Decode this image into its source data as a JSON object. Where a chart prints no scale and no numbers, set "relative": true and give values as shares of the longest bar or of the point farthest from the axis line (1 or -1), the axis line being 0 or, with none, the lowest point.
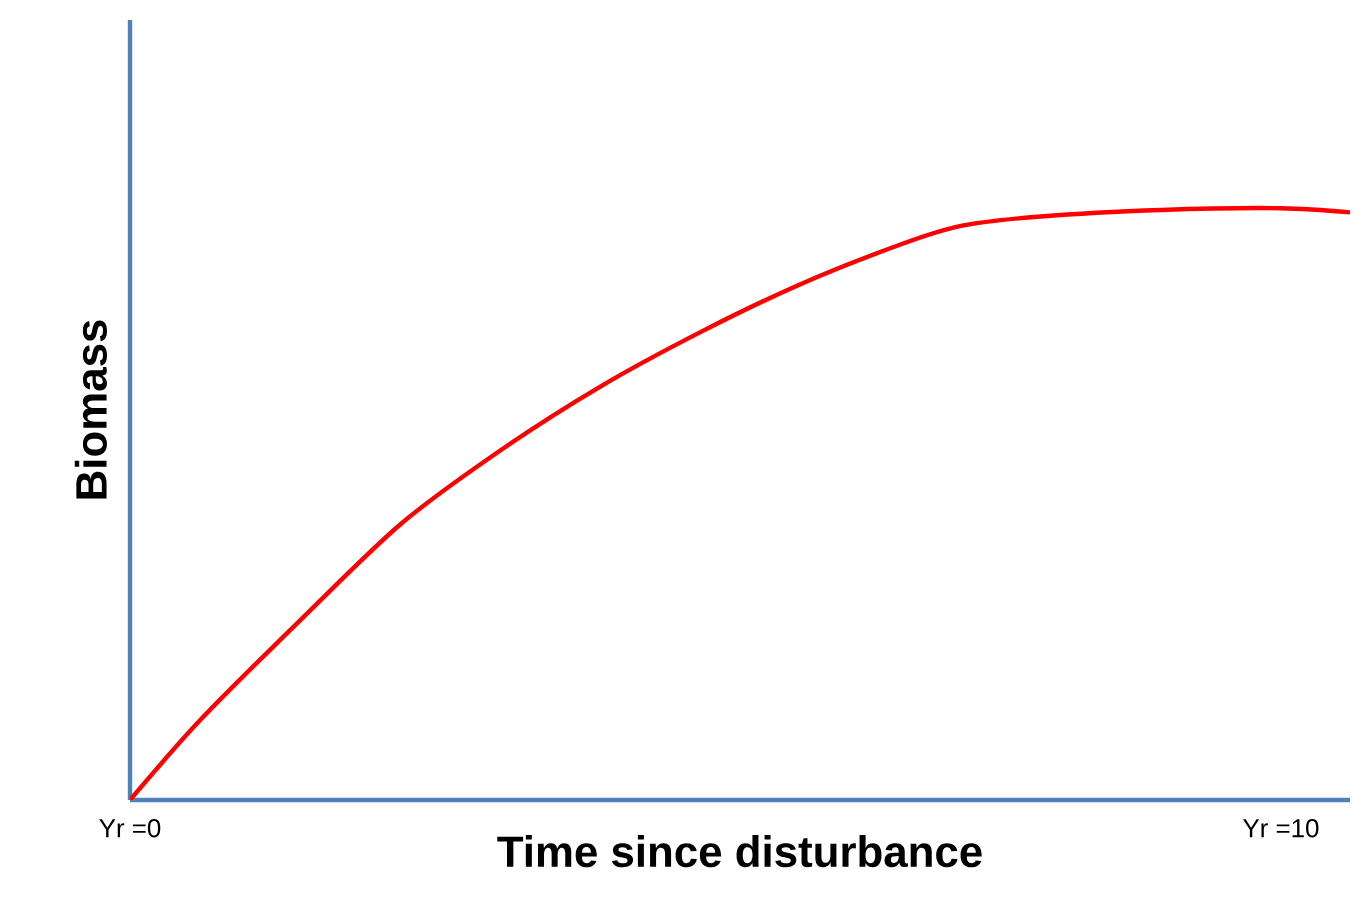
{
  "chart_data": {
    "type": "line",
    "relative": true,
    "xlabel": "Time since disturbance",
    "ylabel": "Biomass",
    "xlim": [
      0,
      10.6
    ],
    "xticks": [
      {
        "value": 0,
        "label": "Yr =0"
      },
      {
        "value": 10,
        "label": "Yr =10"
      }
    ],
    "tick_labels": "x",
    "marker": "none",
    "line_style": "solid",
    "grid": false,
    "series": [
      {
        "color": "#ff0000",
        "x": [
          0,
          0.61,
          1.48,
          2.35,
          3.22,
          4.09,
          4.96,
          5.83,
          6.7,
          7.22,
          7.91,
          8.96,
          10,
          10.6
        ],
        "values": [
          0,
          0.135,
          0.304,
          0.466,
          0.591,
          0.699,
          0.791,
          0.872,
          0.939,
          0.97,
          0.986,
          0.997,
          1.0,
          0.993
        ]
      }
    ]
  }
}
